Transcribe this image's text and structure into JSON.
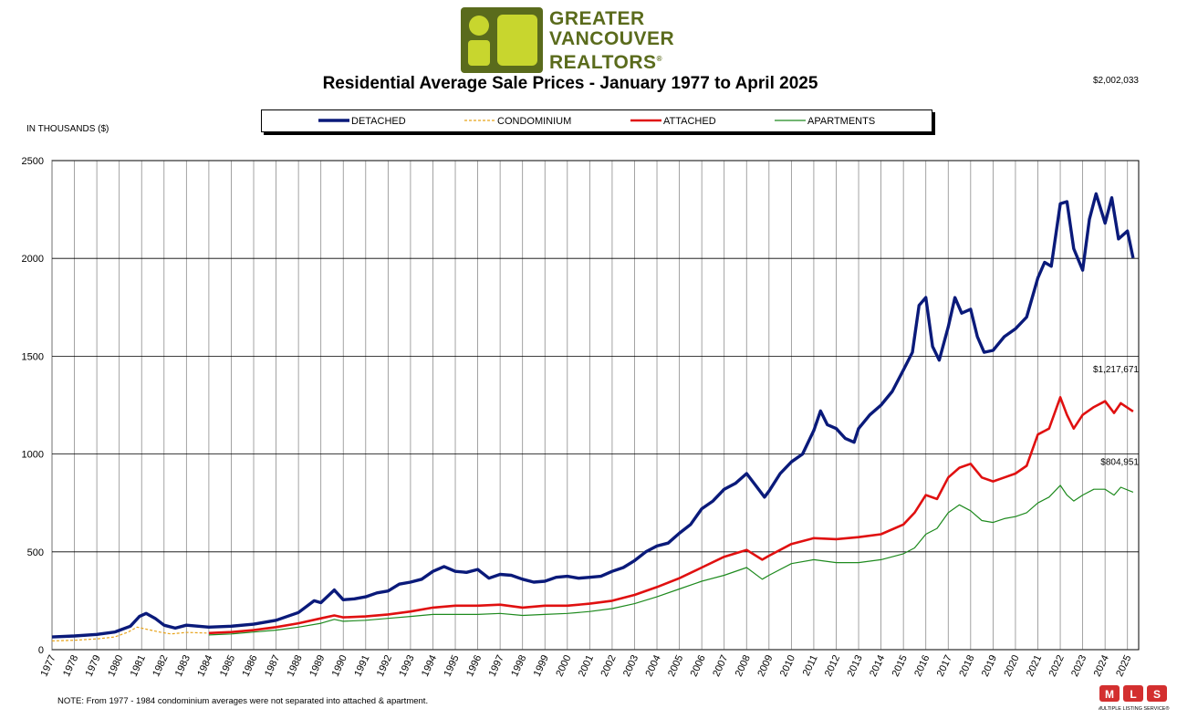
{
  "brand": {
    "line1": "GREATER",
    "line2": "VANCOUVER",
    "line3": "REALTORS",
    "registered": "®",
    "logo_color": "#5a6b1c",
    "logo_accent": "#c8d62e"
  },
  "title": "Residential Average Sale Prices  -  January 1977 to April 2025",
  "units_label": "IN THOUSANDS ($)",
  "note": "NOTE:  From 1977 - 1984 condominium averages were not separated into attached & apartment.",
  "mls": {
    "letters": [
      "M",
      "L",
      "S"
    ],
    "caption": "MULTIPLE LISTING SERVICE®"
  },
  "chart_data": {
    "type": "line",
    "title": "Residential Average Sale Prices  -  January 1977 to April 2025",
    "ylabel": "IN THOUSANDS ($)",
    "xlabel": "",
    "ylim": [
      0,
      2500
    ],
    "yticks": [
      0,
      500,
      1000,
      1500,
      2000,
      2500
    ],
    "grid": true,
    "legend_position": "top",
    "x_tick_labels": [
      "1977",
      "1978",
      "1979",
      "1980",
      "1981",
      "1982",
      "1983",
      "1984",
      "1985",
      "1986",
      "1987",
      "1988",
      "1989",
      "1990",
      "1991",
      "1992",
      "1993",
      "1994",
      "1995",
      "1996",
      "1997",
      "1998",
      "1999",
      "2000",
      "2001",
      "2002",
      "2003",
      "2004",
      "2005",
      "2006",
      "2007",
      "2008",
      "2009",
      "2010",
      "2011",
      "2012",
      "2013",
      "2014",
      "2015",
      "2016",
      "2017",
      "2018",
      "2019",
      "2020",
      "2021",
      "2022",
      "2023",
      "2024",
      "2025"
    ],
    "series": [
      {
        "name": "DETACHED",
        "color": "#0a1a7a",
        "style": "solid",
        "points": [
          [
            1977.0,
            65
          ],
          [
            1978.0,
            70
          ],
          [
            1979.0,
            78
          ],
          [
            1979.8,
            90
          ],
          [
            1980.5,
            120
          ],
          [
            1980.9,
            170
          ],
          [
            1981.2,
            185
          ],
          [
            1981.6,
            160
          ],
          [
            1982.0,
            125
          ],
          [
            1982.5,
            110
          ],
          [
            1983.0,
            125
          ],
          [
            1984.0,
            115
          ],
          [
            1985.0,
            120
          ],
          [
            1986.0,
            130
          ],
          [
            1987.0,
            150
          ],
          [
            1988.0,
            190
          ],
          [
            1988.7,
            250
          ],
          [
            1989.0,
            240
          ],
          [
            1989.6,
            305
          ],
          [
            1990.0,
            255
          ],
          [
            1990.5,
            260
          ],
          [
            1991.0,
            270
          ],
          [
            1991.5,
            290
          ],
          [
            1992.0,
            300
          ],
          [
            1992.5,
            335
          ],
          [
            1993.0,
            345
          ],
          [
            1993.5,
            360
          ],
          [
            1994.0,
            400
          ],
          [
            1994.5,
            425
          ],
          [
            1995.0,
            400
          ],
          [
            1995.5,
            395
          ],
          [
            1996.0,
            410
          ],
          [
            1996.5,
            365
          ],
          [
            1997.0,
            385
          ],
          [
            1997.5,
            380
          ],
          [
            1998.0,
            360
          ],
          [
            1998.5,
            345
          ],
          [
            1999.0,
            350
          ],
          [
            1999.5,
            370
          ],
          [
            2000.0,
            375
          ],
          [
            2000.5,
            365
          ],
          [
            2001.0,
            370
          ],
          [
            2001.5,
            375
          ],
          [
            2002.0,
            400
          ],
          [
            2002.5,
            420
          ],
          [
            2003.0,
            455
          ],
          [
            2003.5,
            500
          ],
          [
            2004.0,
            530
          ],
          [
            2004.5,
            545
          ],
          [
            2005.0,
            595
          ],
          [
            2005.5,
            640
          ],
          [
            2006.0,
            720
          ],
          [
            2006.5,
            760
          ],
          [
            2007.0,
            820
          ],
          [
            2007.5,
            850
          ],
          [
            2008.0,
            900
          ],
          [
            2008.4,
            840
          ],
          [
            2008.8,
            780
          ],
          [
            2009.0,
            810
          ],
          [
            2009.5,
            900
          ],
          [
            2010.0,
            960
          ],
          [
            2010.5,
            1000
          ],
          [
            2011.0,
            1120
          ],
          [
            2011.3,
            1220
          ],
          [
            2011.6,
            1150
          ],
          [
            2012.0,
            1130
          ],
          [
            2012.4,
            1080
          ],
          [
            2012.8,
            1060
          ],
          [
            2013.0,
            1130
          ],
          [
            2013.5,
            1200
          ],
          [
            2014.0,
            1250
          ],
          [
            2014.5,
            1320
          ],
          [
            2015.0,
            1430
          ],
          [
            2015.4,
            1520
          ],
          [
            2015.7,
            1760
          ],
          [
            2016.0,
            1800
          ],
          [
            2016.3,
            1550
          ],
          [
            2016.6,
            1480
          ],
          [
            2017.0,
            1650
          ],
          [
            2017.3,
            1800
          ],
          [
            2017.6,
            1720
          ],
          [
            2018.0,
            1740
          ],
          [
            2018.3,
            1600
          ],
          [
            2018.6,
            1520
          ],
          [
            2019.0,
            1530
          ],
          [
            2019.5,
            1600
          ],
          [
            2020.0,
            1640
          ],
          [
            2020.5,
            1700
          ],
          [
            2021.0,
            1900
          ],
          [
            2021.3,
            1980
          ],
          [
            2021.6,
            1960
          ],
          [
            2022.0,
            2280
          ],
          [
            2022.3,
            2290
          ],
          [
            2022.6,
            2050
          ],
          [
            2023.0,
            1940
          ],
          [
            2023.3,
            2200
          ],
          [
            2023.6,
            2330
          ],
          [
            2024.0,
            2180
          ],
          [
            2024.3,
            2310
          ],
          [
            2024.6,
            2100
          ],
          [
            2025.0,
            2140
          ],
          [
            2025.25,
            2002
          ]
        ]
      },
      {
        "name": "CONDOMINIUM",
        "color": "#e8a31a",
        "style": "dashed",
        "points": [
          [
            1977.0,
            45
          ],
          [
            1978.0,
            48
          ],
          [
            1979.0,
            55
          ],
          [
            1979.8,
            65
          ],
          [
            1980.4,
            90
          ],
          [
            1980.8,
            115
          ],
          [
            1981.2,
            105
          ],
          [
            1981.8,
            90
          ],
          [
            1982.3,
            80
          ],
          [
            1983.0,
            88
          ],
          [
            1983.9,
            85
          ]
        ]
      },
      {
        "name": "ATTACHED",
        "color": "#e01010",
        "style": "solid",
        "points": [
          [
            1984.0,
            85
          ],
          [
            1985.0,
            90
          ],
          [
            1986.0,
            100
          ],
          [
            1987.0,
            115
          ],
          [
            1988.0,
            135
          ],
          [
            1989.0,
            160
          ],
          [
            1989.6,
            175
          ],
          [
            1990.0,
            165
          ],
          [
            1991.0,
            170
          ],
          [
            1992.0,
            180
          ],
          [
            1993.0,
            195
          ],
          [
            1994.0,
            215
          ],
          [
            1995.0,
            225
          ],
          [
            1996.0,
            225
          ],
          [
            1997.0,
            230
          ],
          [
            1998.0,
            215
          ],
          [
            1999.0,
            225
          ],
          [
            2000.0,
            225
          ],
          [
            2001.0,
            235
          ],
          [
            2002.0,
            250
          ],
          [
            2003.0,
            280
          ],
          [
            2004.0,
            320
          ],
          [
            2005.0,
            365
          ],
          [
            2006.0,
            420
          ],
          [
            2007.0,
            475
          ],
          [
            2008.0,
            510
          ],
          [
            2008.7,
            460
          ],
          [
            2009.0,
            480
          ],
          [
            2010.0,
            540
          ],
          [
            2011.0,
            570
          ],
          [
            2012.0,
            565
          ],
          [
            2013.0,
            575
          ],
          [
            2014.0,
            590
          ],
          [
            2015.0,
            640
          ],
          [
            2015.5,
            700
          ],
          [
            2016.0,
            790
          ],
          [
            2016.5,
            770
          ],
          [
            2017.0,
            880
          ],
          [
            2017.5,
            930
          ],
          [
            2018.0,
            950
          ],
          [
            2018.5,
            880
          ],
          [
            2019.0,
            860
          ],
          [
            2019.5,
            880
          ],
          [
            2020.0,
            900
          ],
          [
            2020.5,
            940
          ],
          [
            2021.0,
            1100
          ],
          [
            2021.5,
            1130
          ],
          [
            2022.0,
            1290
          ],
          [
            2022.3,
            1200
          ],
          [
            2022.6,
            1130
          ],
          [
            2023.0,
            1200
          ],
          [
            2023.5,
            1240
          ],
          [
            2024.0,
            1270
          ],
          [
            2024.4,
            1210
          ],
          [
            2024.7,
            1260
          ],
          [
            2025.25,
            1218
          ]
        ]
      },
      {
        "name": "APARTMENTS",
        "color": "#1e8a1e",
        "style": "solid",
        "points": [
          [
            1984.0,
            75
          ],
          [
            1985.0,
            80
          ],
          [
            1986.0,
            90
          ],
          [
            1987.0,
            100
          ],
          [
            1988.0,
            115
          ],
          [
            1989.0,
            135
          ],
          [
            1989.6,
            155
          ],
          [
            1990.0,
            145
          ],
          [
            1991.0,
            150
          ],
          [
            1992.0,
            160
          ],
          [
            1993.0,
            170
          ],
          [
            1994.0,
            180
          ],
          [
            1995.0,
            180
          ],
          [
            1996.0,
            180
          ],
          [
            1997.0,
            185
          ],
          [
            1998.0,
            175
          ],
          [
            1999.0,
            180
          ],
          [
            2000.0,
            185
          ],
          [
            2001.0,
            195
          ],
          [
            2002.0,
            210
          ],
          [
            2003.0,
            235
          ],
          [
            2004.0,
            270
          ],
          [
            2005.0,
            310
          ],
          [
            2006.0,
            350
          ],
          [
            2007.0,
            380
          ],
          [
            2008.0,
            420
          ],
          [
            2008.7,
            360
          ],
          [
            2009.0,
            380
          ],
          [
            2010.0,
            440
          ],
          [
            2011.0,
            460
          ],
          [
            2012.0,
            445
          ],
          [
            2013.0,
            445
          ],
          [
            2014.0,
            460
          ],
          [
            2015.0,
            490
          ],
          [
            2015.5,
            520
          ],
          [
            2016.0,
            590
          ],
          [
            2016.5,
            620
          ],
          [
            2017.0,
            700
          ],
          [
            2017.5,
            740
          ],
          [
            2018.0,
            710
          ],
          [
            2018.5,
            660
          ],
          [
            2019.0,
            650
          ],
          [
            2019.5,
            670
          ],
          [
            2020.0,
            680
          ],
          [
            2020.5,
            700
          ],
          [
            2021.0,
            750
          ],
          [
            2021.5,
            780
          ],
          [
            2022.0,
            840
          ],
          [
            2022.3,
            790
          ],
          [
            2022.6,
            760
          ],
          [
            2023.0,
            790
          ],
          [
            2023.5,
            820
          ],
          [
            2024.0,
            820
          ],
          [
            2024.4,
            790
          ],
          [
            2024.7,
            830
          ],
          [
            2025.25,
            805
          ]
        ]
      }
    ],
    "annotations": [
      {
        "text": "$2,002,033",
        "series": "DETACHED",
        "x": 2025.25,
        "y": 2002
      },
      {
        "text": "$1,217,671",
        "series": "ATTACHED",
        "x": 2025.25,
        "y": 1218
      },
      {
        "text": "$804,951",
        "series": "APARTMENTS",
        "x": 2025.25,
        "y": 805
      }
    ]
  }
}
